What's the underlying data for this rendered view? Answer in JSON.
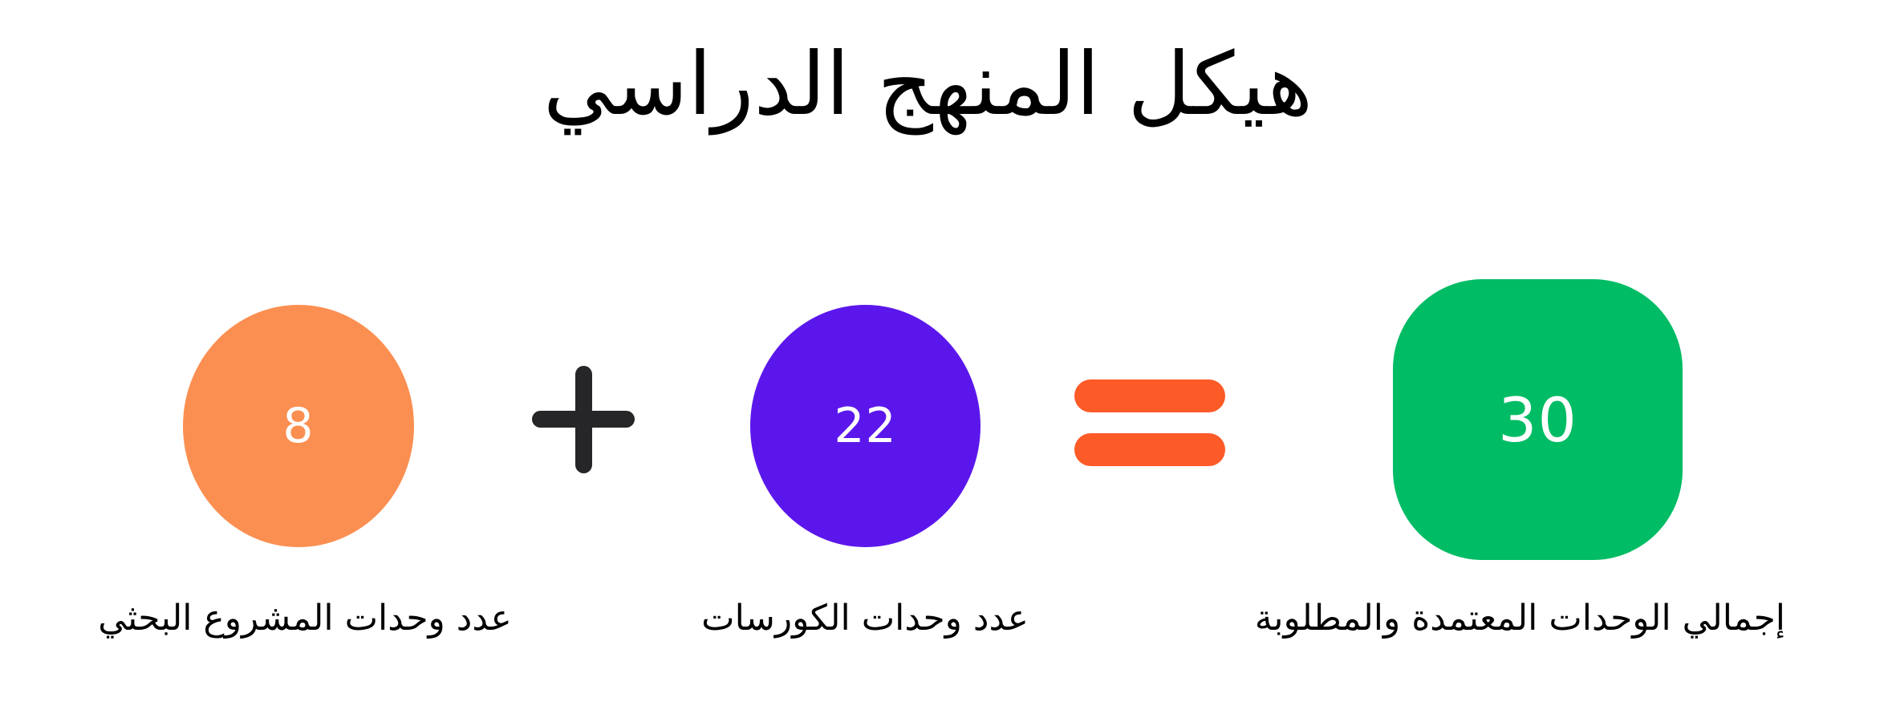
{
  "title": "هيكل المنهج الدراسي",
  "equation": {
    "operand_1": {
      "value": "8",
      "label": "عدد وحدات المشروع البحثي",
      "shape": "circle",
      "color": "#FB8F51"
    },
    "operator_plus": "+",
    "operand_2": {
      "value": "22",
      "label": "عدد وحدات الكورسات",
      "shape": "circle",
      "color": "#5B17EB"
    },
    "operator_equals": "=",
    "result": {
      "value": "30",
      "label": "إجمالي الوحدات المعتمدة والمطلوبة",
      "shape": "rounded-square",
      "color": "#00BC64"
    }
  },
  "colors": {
    "background": "#FFFFFF",
    "text": "#000000",
    "operand_1_fill": "#FB8F51",
    "operand_2_fill": "#5B17EB",
    "result_fill": "#00BC64",
    "plus_icon": "#262628",
    "equals_icon": "#FC5A27",
    "number_text": "#FFFFFF"
  }
}
